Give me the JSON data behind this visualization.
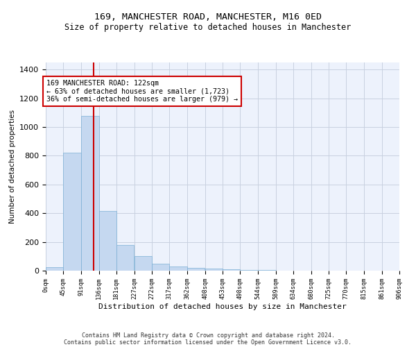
{
  "title": "169, MANCHESTER ROAD, MANCHESTER, M16 0ED",
  "subtitle": "Size of property relative to detached houses in Manchester",
  "xlabel": "Distribution of detached houses by size in Manchester",
  "ylabel": "Number of detached properties",
  "footer1": "Contains HM Land Registry data © Crown copyright and database right 2024.",
  "footer2": "Contains public sector information licensed under the Open Government Licence v3.0.",
  "annotation_line1": "169 MANCHESTER ROAD: 122sqm",
  "annotation_line2": "← 63% of detached houses are smaller (1,723)",
  "annotation_line3": "36% of semi-detached houses are larger (979) →",
  "bar_color": "#c5d8f0",
  "bar_edge_color": "#7bafd4",
  "vline_color": "#cc0000",
  "vline_x": 122,
  "bin_edges": [
    0,
    45,
    91,
    136,
    181,
    227,
    272,
    317,
    362,
    408,
    453,
    498,
    544,
    589,
    634,
    680,
    725,
    770,
    815,
    861,
    906
  ],
  "bar_heights": [
    25,
    820,
    1080,
    415,
    180,
    100,
    50,
    30,
    20,
    15,
    10,
    3,
    3,
    2,
    1,
    1,
    1,
    0,
    0,
    0
  ],
  "ylim": [
    0,
    1450
  ],
  "yticks": [
    0,
    200,
    400,
    600,
    800,
    1000,
    1200,
    1400
  ],
  "background_color": "#edf2fc",
  "annotation_box_color": "#ffffff",
  "annotation_box_edge": "#cc0000",
  "grid_color": "#c8d0e0"
}
